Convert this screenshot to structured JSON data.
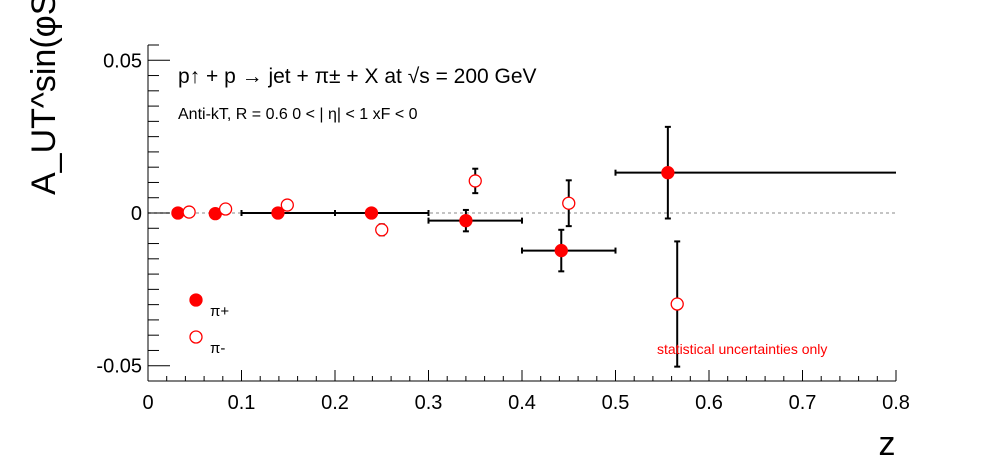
{
  "chart_data": {
    "type": "scatter",
    "title": "p↑ + p → jet + π± + X at √s = 200 GeV",
    "subtitle": "Anti-kT, R = 0.6   0 < | η| < 1   xF < 0",
    "xlabel": "z",
    "ylabel": "A_UT^sin(φS-φh)",
    "xlim": [
      0,
      0.8
    ],
    "ylim": [
      -0.055,
      0.055
    ],
    "x_ticks": [
      "0",
      "0.1",
      "0.2",
      "0.3",
      "0.4",
      "0.5",
      "0.6",
      "0.7",
      "0.8"
    ],
    "y_ticks": [
      "0.05",
      "0",
      "-0.05"
    ],
    "annotation": "statistical uncertainties only",
    "grid": false,
    "legend_position": "bottom-left",
    "series": [
      {
        "name": "π+",
        "marker": "filled-circle",
        "color": "#ff0000",
        "points": [
          {
            "x": 0.032,
            "y": 0.0,
            "xerr_lo": 0.0,
            "xerr_hi": 0.0,
            "yerr": 0.0003
          },
          {
            "x": 0.072,
            "y": -0.0002,
            "xerr_lo": 0.0,
            "xerr_hi": 0.0,
            "yerr": 0.0004
          },
          {
            "x": 0.139,
            "y": 0.0,
            "xerr_lo": 0.039,
            "xerr_hi": 0.061,
            "yerr": 0.0006
          },
          {
            "x": 0.239,
            "y": 0.0,
            "xerr_lo": 0.039,
            "xerr_hi": 0.061,
            "yerr": 0.0015
          },
          {
            "x": 0.34,
            "y": -0.0025,
            "xerr_lo": 0.04,
            "xerr_hi": 0.06,
            "yerr": 0.0035
          },
          {
            "x": 0.442,
            "y": -0.0123,
            "xerr_lo": 0.042,
            "xerr_hi": 0.058,
            "yerr": 0.0068
          },
          {
            "x": 0.556,
            "y": 0.0132,
            "xerr_lo": 0.056,
            "xerr_hi": 0.244,
            "yerr": 0.015
          }
        ]
      },
      {
        "name": "π-",
        "marker": "open-circle",
        "color": "#ff0000",
        "points": [
          {
            "x": 0.044,
            "y": 0.0003,
            "yerr": 0.0004
          },
          {
            "x": 0.083,
            "y": 0.0013,
            "yerr": 0.0005
          },
          {
            "x": 0.149,
            "y": 0.0026,
            "yerr": 0.0008
          },
          {
            "x": 0.25,
            "y": -0.0055,
            "yerr": 0.0018
          },
          {
            "x": 0.35,
            "y": 0.0105,
            "yerr": 0.004
          },
          {
            "x": 0.45,
            "y": 0.0032,
            "yerr": 0.0075
          },
          {
            "x": 0.566,
            "y": -0.0298,
            "yerr": 0.0205
          }
        ]
      }
    ]
  },
  "colors": {
    "marker": "#ff0000",
    "annotation": "#ff0000",
    "zero_line": "#b0b0b0",
    "axis": "#000000"
  }
}
